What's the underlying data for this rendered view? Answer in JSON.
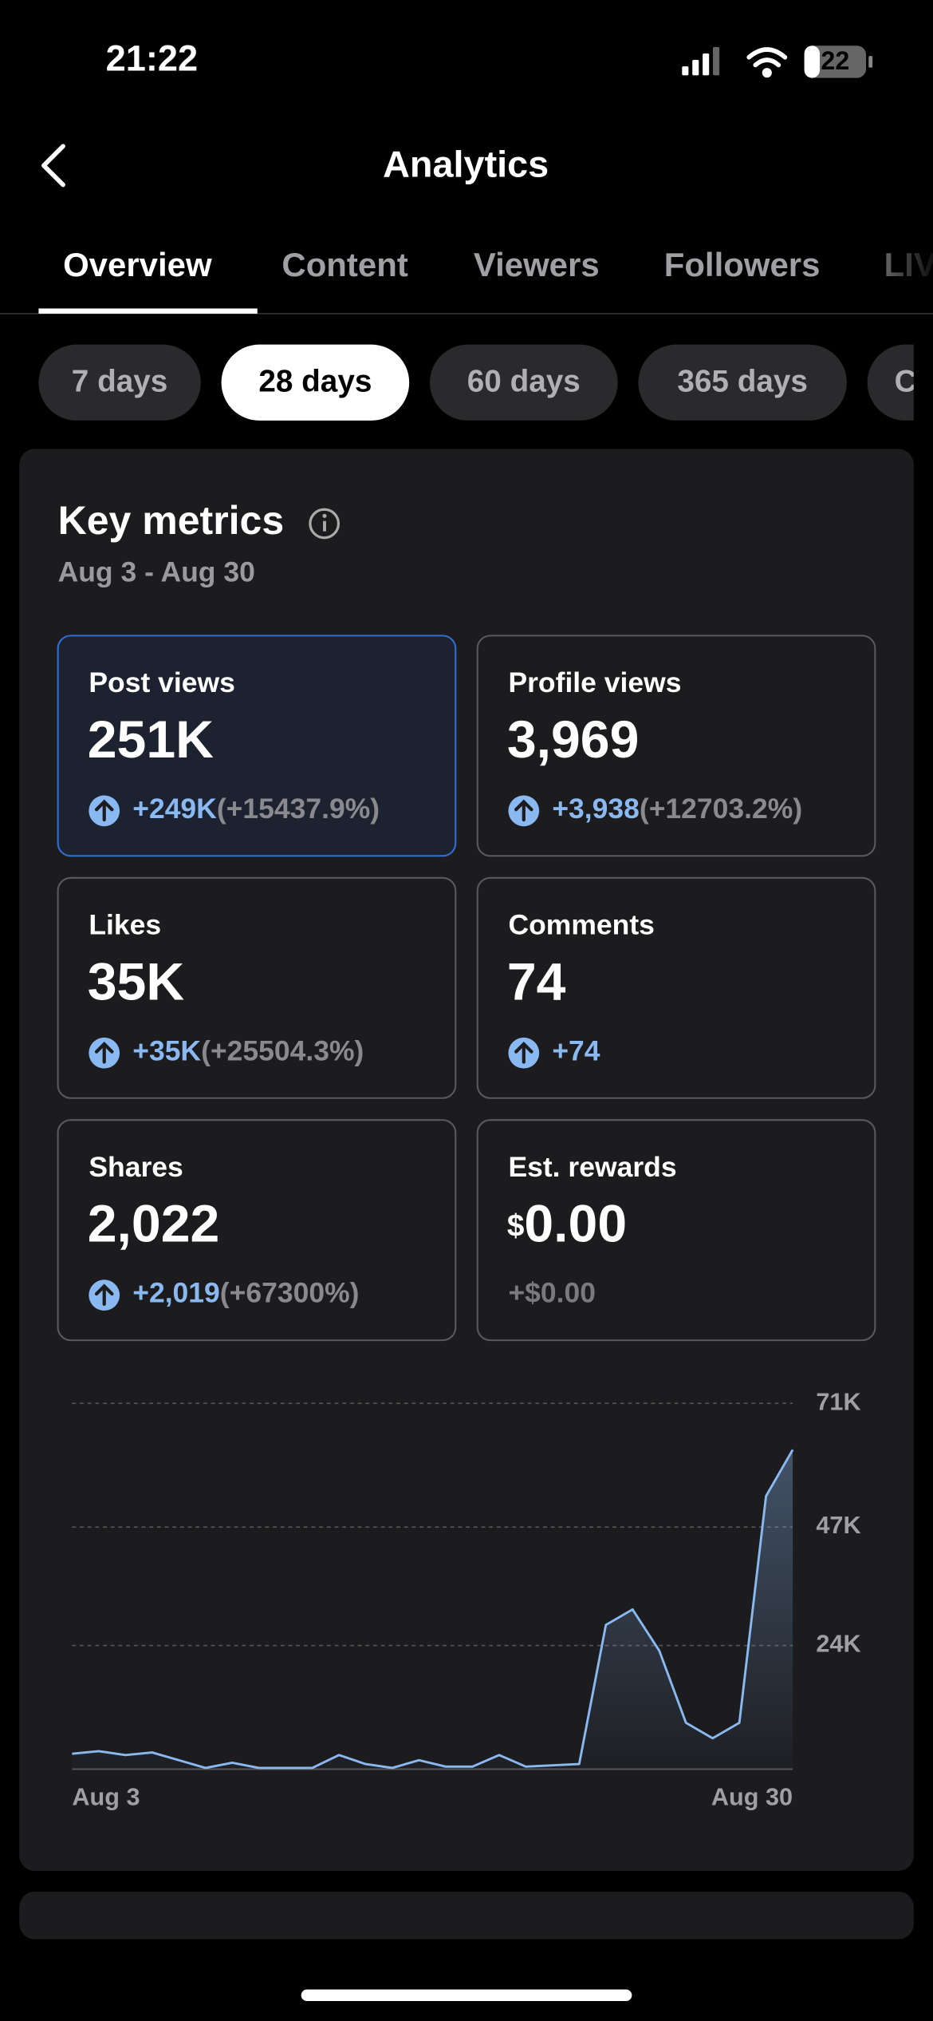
{
  "status_bar": {
    "time": "21:22",
    "battery": "22"
  },
  "header": {
    "title": "Analytics"
  },
  "tabs": [
    "Overview",
    "Content",
    "Viewers",
    "Followers",
    "LIVE"
  ],
  "periods": [
    "7 days",
    "28 days",
    "60 days",
    "365 days",
    "Custom"
  ],
  "key_metrics": {
    "title": "Key metrics",
    "date_range": "Aug 3 - Aug 30",
    "cards": [
      {
        "label": "Post views",
        "value": "251K",
        "change": "+249K",
        "pct": "(+15437.9%)",
        "selected": true
      },
      {
        "label": "Profile views",
        "value": "3,969",
        "change": "+3,938",
        "pct": "(+12703.2%)"
      },
      {
        "label": "Likes",
        "value": "35K",
        "change": "+35K",
        "pct": "(+25504.3%)"
      },
      {
        "label": "Comments",
        "value": "74",
        "change": "+74"
      },
      {
        "label": "Shares",
        "value": "2,022",
        "change": "+2,019",
        "pct": "(+67300%)"
      },
      {
        "label": "Est. rewards",
        "currency": "$",
        "value": "0.00",
        "change": "+$0.00"
      }
    ]
  },
  "chart_data": {
    "type": "line",
    "color": "#8ab8f0",
    "categories": [
      "Aug 3",
      null,
      null,
      null,
      null,
      null,
      null,
      null,
      null,
      null,
      null,
      null,
      null,
      null,
      null,
      null,
      null,
      null,
      null,
      null,
      null,
      null,
      null,
      null,
      null,
      null,
      null,
      "Aug 30"
    ],
    "values": [
      3000,
      3500,
      2750,
      3250,
      1750,
      250,
      1250,
      250,
      250,
      250,
      2750,
      1000,
      250,
      1750,
      500,
      500,
      2750,
      500,
      750,
      1000,
      28000,
      31000,
      23000,
      9000,
      6000,
      9000,
      53000,
      62000
    ],
    "ylim": [
      0,
      71000
    ],
    "yticks": [
      {
        "value": 24000,
        "label": "24K"
      },
      {
        "value": 47000,
        "label": "47K"
      },
      {
        "value": 71000,
        "label": "71K"
      }
    ],
    "grid": true
  }
}
